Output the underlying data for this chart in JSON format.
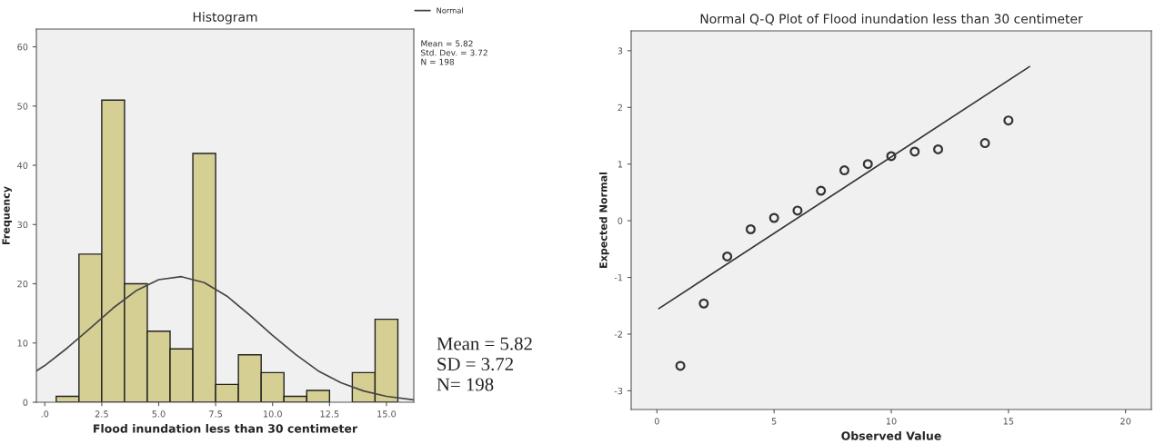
{
  "chart_data": [
    {
      "type": "histogram",
      "title": "Histogram",
      "xlabel": "Flood inundation less than 30 centimeter",
      "ylabel": "Frequency",
      "series": [
        {
          "color": "#d6cf94",
          "bins": [
            0.5,
            1.5,
            2.5,
            3.5,
            4.5,
            5.5,
            6.5,
            7.5,
            8.5,
            9.5,
            10.5,
            11.5,
            12.5,
            13.5,
            14.5,
            15.5
          ],
          "values": [
            1,
            25,
            51,
            20,
            12,
            9,
            42,
            3,
            8,
            5,
            1,
            2,
            0,
            5,
            14
          ]
        },
        {
          "type": "line",
          "name": "Normal",
          "color": "#444444",
          "x": [
            -0.37,
            0,
            1,
            2,
            3,
            4,
            5,
            6,
            7,
            8,
            9,
            10,
            11,
            12,
            13,
            14,
            15,
            16.2
          ],
          "values": [
            5.3,
            6.2,
            9.2,
            12.5,
            15.9,
            18.8,
            20.7,
            21.2,
            20.2,
            17.9,
            14.7,
            11.3,
            8.1,
            5.3,
            3.3,
            1.9,
            1.0,
            0.4
          ]
        }
      ],
      "xlim": [
        -0.37,
        16.2
      ],
      "ylim": [
        0,
        63
      ],
      "xticks": [
        {
          "value": 0,
          "label": ".0"
        },
        {
          "value": 2.5,
          "label": "2.5"
        },
        {
          "value": 5,
          "label": "5.0"
        },
        {
          "value": 7.5,
          "label": "7.5"
        },
        {
          "value": 10,
          "label": "10.0"
        },
        {
          "value": 12.5,
          "label": "12.5"
        },
        {
          "value": 15,
          "label": "15.0"
        }
      ],
      "yticks": [
        0,
        10,
        20,
        30,
        40,
        50,
        60
      ],
      "grid": false,
      "legend": "top right",
      "annotations": [
        "Mean = 5.82\nStd. Dev. = 3.72\nN = 198",
        "Mean = 5.82\nSD = 3.72\nN= 198"
      ]
    },
    {
      "type": "scatter",
      "title": "Normal Q-Q Plot of Flood inundation less than 30 centimeter",
      "xlabel": "Observed Value",
      "ylabel": "Expected Normal",
      "series": [
        {
          "marker": "circle",
          "color": "#333333",
          "x": [
            1,
            2,
            3,
            4,
            5,
            6,
            7,
            8,
            9,
            10,
            11,
            12,
            14,
            15
          ],
          "values": [
            -2.56,
            -1.46,
            -0.63,
            -0.15,
            0.05,
            0.18,
            0.53,
            0.89,
            1.0,
            1.14,
            1.22,
            1.26,
            1.37,
            1.77
          ]
        },
        {
          "type": "line",
          "color": "#333333",
          "x": [
            0.08,
            15.9
          ],
          "values": [
            -1.55,
            2.72
          ]
        }
      ],
      "xlim": [
        -1.1,
        21.1
      ],
      "ylim": [
        -3.33,
        3.35
      ],
      "xticks": [
        0,
        5,
        10,
        15,
        20
      ],
      "yticks": [
        -3,
        -2,
        -1,
        0,
        1,
        2,
        3
      ],
      "grid": false
    }
  ]
}
